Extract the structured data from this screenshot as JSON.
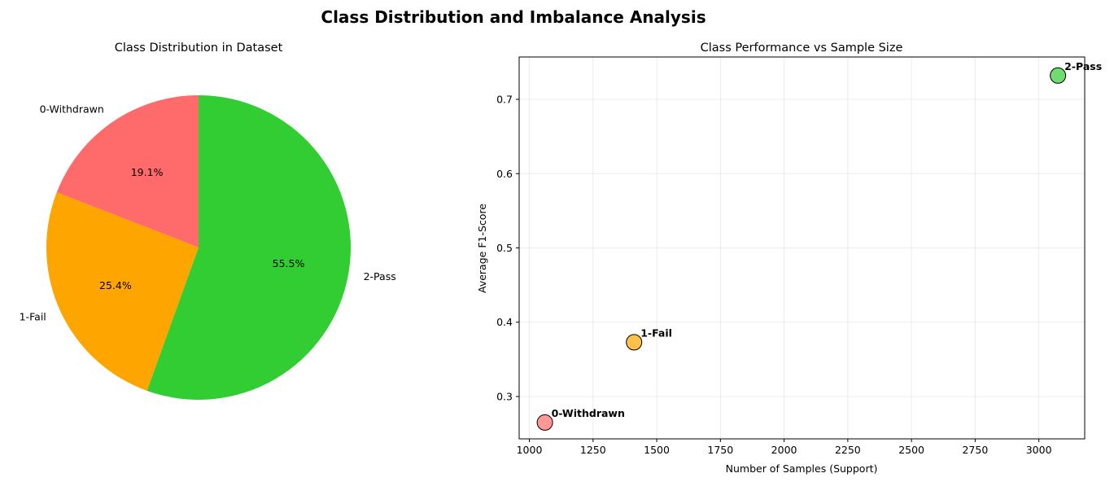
{
  "suptitle": "Class Distribution and Imbalance Analysis",
  "chart_data": [
    {
      "type": "pie",
      "title": "Class Distribution in Dataset",
      "labels": [
        "0-Withdrawn",
        "1-Fail",
        "2-Pass"
      ],
      "values": [
        19.1,
        25.4,
        55.5
      ],
      "pct_labels": [
        "19.1%",
        "25.4%",
        "55.5%"
      ],
      "colors": [
        "#ff6b6b",
        "#ffa500",
        "#32cd32"
      ],
      "startangle": 90,
      "direction": "counterclockwise"
    },
    {
      "type": "scatter",
      "title": "Class Performance vs Sample Size",
      "xlabel": "Number of Samples (Support)",
      "ylabel": "Average F1-Score",
      "xlim": [
        960,
        3180
      ],
      "ylim": [
        0.243,
        0.757
      ],
      "xticks": [
        1000,
        1250,
        1500,
        1750,
        2000,
        2250,
        2500,
        2750,
        3000
      ],
      "xtick_labels": [
        "1000",
        "1250",
        "1500",
        "1750",
        "2000",
        "2250",
        "2500",
        "2750",
        "3000"
      ],
      "yticks": [
        0.3,
        0.4,
        0.5,
        0.6,
        0.7
      ],
      "ytick_labels": [
        "0.3",
        "0.4",
        "0.5",
        "0.6",
        "0.7"
      ],
      "grid": true,
      "points": [
        {
          "label": "0-Withdrawn",
          "x": 1061,
          "y": 0.265,
          "color": "#ff6b6b"
        },
        {
          "label": "1-Fail",
          "x": 1411,
          "y": 0.373,
          "color": "#ffa500"
        },
        {
          "label": "2-Pass",
          "x": 3075,
          "y": 0.732,
          "color": "#32cd32"
        }
      ]
    }
  ]
}
